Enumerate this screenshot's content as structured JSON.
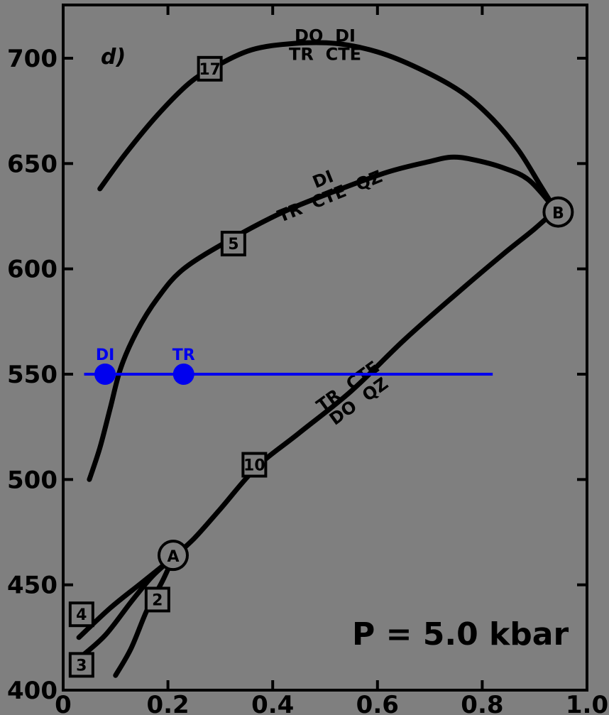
{
  "chart_data": {
    "type": "line",
    "panel_label": "d)",
    "annotation": "P = 5.0 kbar",
    "xlim": [
      0,
      1.0
    ],
    "ylim": [
      400,
      720
    ],
    "x_ticks": [
      {
        "value": 0.0,
        "label": "0"
      },
      {
        "value": 0.2,
        "label": "0.2"
      },
      {
        "value": 0.4,
        "label": "0.4"
      },
      {
        "value": 0.6,
        "label": "0.6"
      },
      {
        "value": 0.8,
        "label": "0.8"
      },
      {
        "value": 1.0,
        "label": "1.0"
      }
    ],
    "y_ticks": [
      {
        "value": 400,
        "label": "400"
      },
      {
        "value": 450,
        "label": "450"
      },
      {
        "value": 500,
        "label": "500"
      },
      {
        "value": 550,
        "label": "550"
      },
      {
        "value": 600,
        "label": "600"
      },
      {
        "value": 650,
        "label": "650"
      },
      {
        "value": 700,
        "label": "700"
      }
    ],
    "curves": [
      {
        "id": "top",
        "color": "#000000",
        "points": [
          [
            0.07,
            638
          ],
          [
            0.12,
            655
          ],
          [
            0.18,
            673
          ],
          [
            0.24,
            688
          ],
          [
            0.29,
            696
          ],
          [
            0.36,
            704
          ],
          [
            0.44,
            707
          ],
          [
            0.52,
            707
          ],
          [
            0.6,
            703
          ],
          [
            0.68,
            695
          ],
          [
            0.76,
            684
          ],
          [
            0.82,
            671
          ],
          [
            0.87,
            656
          ],
          [
            0.91,
            640
          ],
          [
            0.94,
            628
          ]
        ]
      },
      {
        "id": "middle",
        "color": "#000000",
        "points": [
          [
            0.05,
            500
          ],
          [
            0.07,
            515
          ],
          [
            0.09,
            534
          ],
          [
            0.11,
            553
          ],
          [
            0.14,
            570
          ],
          [
            0.18,
            586
          ],
          [
            0.23,
            600
          ],
          [
            0.32,
            614
          ],
          [
            0.42,
            627
          ],
          [
            0.52,
            637
          ],
          [
            0.62,
            646
          ],
          [
            0.7,
            651
          ],
          [
            0.74,
            653
          ],
          [
            0.78,
            652
          ],
          [
            0.84,
            648
          ],
          [
            0.89,
            642
          ],
          [
            0.94,
            628
          ]
        ]
      },
      {
        "id": "lower",
        "color": "#000000",
        "points": [
          [
            0.21,
            463
          ],
          [
            0.25,
            472
          ],
          [
            0.3,
            486
          ],
          [
            0.37,
            506
          ],
          [
            0.45,
            522
          ],
          [
            0.55,
            542
          ],
          [
            0.65,
            566
          ],
          [
            0.75,
            588
          ],
          [
            0.84,
            607
          ],
          [
            0.9,
            619
          ],
          [
            0.94,
            628
          ]
        ]
      },
      {
        "id": "branch-4",
        "color": "#000000",
        "points": [
          [
            0.03,
            425
          ],
          [
            0.09,
            439
          ],
          [
            0.15,
            451
          ],
          [
            0.21,
            463
          ]
        ]
      },
      {
        "id": "branch-3",
        "color": "#000000",
        "points": [
          [
            0.03,
            415
          ],
          [
            0.08,
            426
          ],
          [
            0.13,
            442
          ],
          [
            0.17,
            454
          ],
          [
            0.21,
            463
          ]
        ]
      },
      {
        "id": "branch-2",
        "color": "#000000",
        "points": [
          [
            0.1,
            407
          ],
          [
            0.13,
            420
          ],
          [
            0.16,
            438
          ],
          [
            0.19,
            452
          ],
          [
            0.21,
            463
          ]
        ]
      }
    ],
    "curve_labels": [
      {
        "lines": [
          "DO  DI",
          "TR  CTE"
        ],
        "x": 0.5,
        "y": 708,
        "rotate": 0
      },
      {
        "lines": [
          "DI",
          "TR  CTE  QZ"
        ],
        "x": 0.5,
        "y": 640,
        "rotate": -22
      },
      {
        "lines": [
          "TR  CTE",
          "DO  QZ"
        ],
        "x": 0.55,
        "y": 542,
        "rotate": -36
      }
    ],
    "box_markers": [
      {
        "label": "17",
        "x": 0.28,
        "y": 695
      },
      {
        "label": "5",
        "x": 0.325,
        "y": 612
      },
      {
        "label": "10",
        "x": 0.365,
        "y": 507
      },
      {
        "label": "2",
        "x": 0.18,
        "y": 443
      },
      {
        "label": "4",
        "x": 0.035,
        "y": 436
      },
      {
        "label": "3",
        "x": 0.035,
        "y": 412
      }
    ],
    "circle_markers": [
      {
        "label": "A",
        "x": 0.21,
        "y": 464
      },
      {
        "label": "B",
        "x": 0.945,
        "y": 627
      }
    ],
    "overlay_line": {
      "x": [
        0.04,
        0.82
      ],
      "y": 550,
      "color": "#0000ee"
    },
    "overlay_points": [
      {
        "label": "DI",
        "x": 0.08,
        "y": 550,
        "color": "#0000ee"
      },
      {
        "label": "TR",
        "x": 0.23,
        "y": 550,
        "color": "#0000ee"
      }
    ]
  }
}
